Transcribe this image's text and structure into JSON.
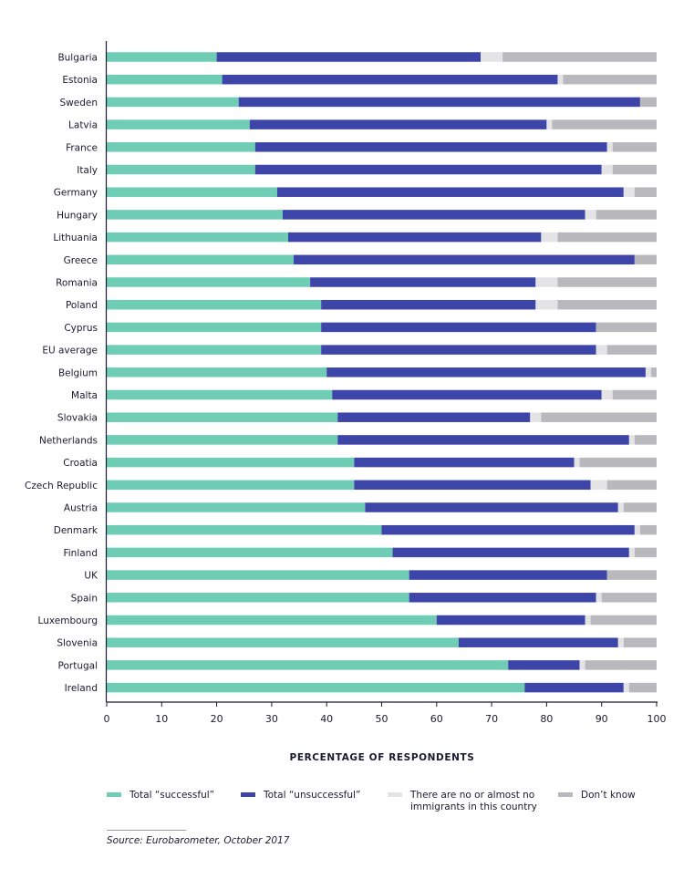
{
  "chart_data": {
    "type": "bar",
    "orientation": "horizontal",
    "stacked": true,
    "categories": [
      "Bulgaria",
      "Estonia",
      "Sweden",
      "Latvia",
      "France",
      "Italy",
      "Germany",
      "Hungary",
      "Lithuania",
      "Greece",
      "Romania",
      "Poland",
      "Cyprus",
      "EU average",
      "Belgium",
      "Malta",
      "Slovakia",
      "Netherlands",
      "Croatia",
      "Czech Republic",
      "Austria",
      "Denmark",
      "Finland",
      "UK",
      "Spain",
      "Luxembourg",
      "Slovenia",
      "Portugal",
      "Ireland"
    ],
    "series": [
      {
        "name": "Total “successful”",
        "color": "#6fcdb5",
        "values": [
          20,
          21,
          24,
          26,
          27,
          27,
          31,
          32,
          33,
          34,
          37,
          39,
          39,
          39,
          40,
          41,
          42,
          42,
          45,
          45,
          47,
          50,
          52,
          55,
          55,
          60,
          64,
          73,
          76
        ]
      },
      {
        "name": "Total “unsuccessful”",
        "color": "#3e45a8",
        "values": [
          48,
          61,
          73,
          54,
          64,
          63,
          63,
          55,
          46,
          62,
          41,
          39,
          50,
          50,
          58,
          49,
          35,
          53,
          40,
          43,
          46,
          46,
          43,
          36,
          34,
          27,
          29,
          13,
          18
        ]
      },
      {
        "name": "There are no or almost no immigrants in this country",
        "color": "#e4e4e6",
        "values": [
          4,
          1,
          0,
          1,
          1,
          2,
          2,
          2,
          3,
          0,
          4,
          4,
          0,
          2,
          1,
          2,
          2,
          1,
          1,
          3,
          1,
          1,
          1,
          0,
          1,
          1,
          1,
          1,
          1
        ]
      },
      {
        "name": "Don’t know",
        "color": "#b9b9bd",
        "values": [
          28,
          17,
          3,
          19,
          8,
          8,
          4,
          11,
          18,
          4,
          18,
          18,
          11,
          9,
          1,
          8,
          21,
          4,
          14,
          9,
          6,
          3,
          4,
          9,
          10,
          12,
          6,
          13,
          5
        ]
      }
    ],
    "xlim": [
      0,
      100
    ],
    "xticks": [
      0,
      10,
      20,
      30,
      40,
      50,
      60,
      70,
      80,
      90,
      100
    ],
    "xlabel": "PERCENTAGE OF RESPONDENTS",
    "legend_position": "bottom",
    "legend_lines": [
      [
        "Total “successful”"
      ],
      [
        "Total “unsuccessful”"
      ],
      [
        "There are no or almost no",
        "immigrants in this country"
      ],
      [
        "Don’t know"
      ]
    ],
    "source": "Source: Eurobarometer, October 2017",
    "axis_color": "#1a1a2e"
  }
}
